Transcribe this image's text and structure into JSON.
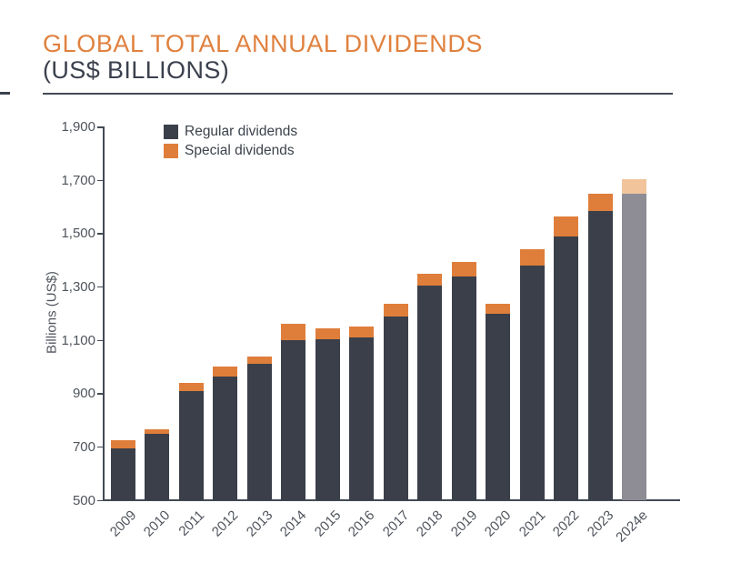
{
  "header": {
    "title": "GLOBAL TOTAL ANNUAL DIVIDENDS",
    "subtitle": "(US$ BILLIONS)",
    "title_color": "#e0813f",
    "subtitle_color": "#3b414d"
  },
  "legend": [
    {
      "label": "Regular dividends",
      "color": "#3a3f4a"
    },
    {
      "label": "Special dividends",
      "color": "#df7e3b"
    }
  ],
  "chart_data": {
    "type": "bar",
    "stacked": true,
    "title": "GLOBAL TOTAL ANNUAL DIVIDENDS (US$ BILLIONS)",
    "xlabel": "",
    "ylabel": "Billions (US$)",
    "ylim": [
      500,
      1900
    ],
    "ytick_interval": 200,
    "yticks": [
      500,
      700,
      900,
      1100,
      1300,
      1500,
      1700,
      1900
    ],
    "grid": false,
    "legend_position": "top-left",
    "categories": [
      "2009",
      "2010",
      "2011",
      "2012",
      "2013",
      "2014",
      "2015",
      "2016",
      "2017",
      "2018",
      "2019",
      "2020",
      "2021",
      "2022",
      "2023",
      "2024e"
    ],
    "forecast_category": "2024e",
    "series": [
      {
        "name": "Regular dividends",
        "color": "#3a3f4a",
        "forecast_color": "#8e8c95",
        "values": [
          695,
          750,
          910,
          965,
          1010,
          1100,
          1105,
          1110,
          1190,
          1305,
          1340,
          1200,
          1380,
          1490,
          1585,
          1650
        ]
      },
      {
        "name": "Special dividends",
        "color": "#df7e3b",
        "forecast_color": "#f1c49c",
        "values": [
          30,
          15,
          30,
          35,
          30,
          60,
          40,
          40,
          45,
          45,
          55,
          35,
          60,
          75,
          65,
          55
        ]
      }
    ],
    "totals": [
      725,
      765,
      940,
      1000,
      1040,
      1160,
      1145,
      1150,
      1235,
      1350,
      1395,
      1235,
      1440,
      1565,
      1650,
      1705
    ]
  }
}
